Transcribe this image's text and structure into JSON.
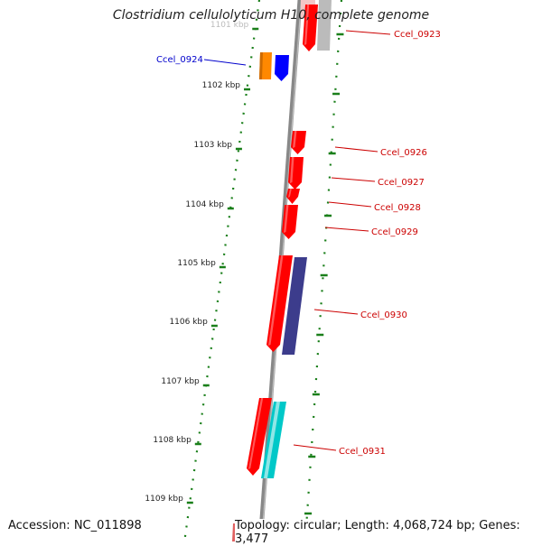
{
  "title": "Clostridium cellulolyticum H10, complete genome",
  "accession": "Accession: NC_011898",
  "stats": "Topology: circular; Length: 4,068,724 bp; Genes: 3,477",
  "colors": {
    "tick": "#1a7f1a",
    "backbone": "#888888",
    "label_red": "#cc0000",
    "label_blue": "#0000cc",
    "gene_red": "#ff0000",
    "gene_blue": "#0000ff",
    "gene_orange": "#ff8800",
    "gene_purple": "#3c3c8c",
    "gene_cyan": "#00c8c8",
    "gene_gray": "#bbbbbb"
  },
  "ruler": [
    {
      "label": "1101 kbp"
    },
    {
      "label": "1102 kbp"
    },
    {
      "label": "1103 kbp"
    },
    {
      "label": "1104 kbp"
    },
    {
      "label": "1105 kbp"
    },
    {
      "label": "1106 kbp"
    },
    {
      "label": "1107 kbp"
    },
    {
      "label": "1108 kbp"
    },
    {
      "label": "1109 kbp"
    }
  ],
  "genes": [
    {
      "name": "Ccel_0923",
      "color": "gene_red"
    },
    {
      "name": "Ccel_0924",
      "color": "gene_blue"
    },
    {
      "name": "Ccel_0926",
      "color": "gene_red"
    },
    {
      "name": "Ccel_0927",
      "color": "gene_red"
    },
    {
      "name": "Ccel_0928",
      "color": "gene_red"
    },
    {
      "name": "Ccel_0929",
      "color": "gene_red"
    },
    {
      "name": "Ccel_0930",
      "color": "gene_red"
    },
    {
      "name": "Ccel_0931",
      "color": "gene_red"
    }
  ]
}
